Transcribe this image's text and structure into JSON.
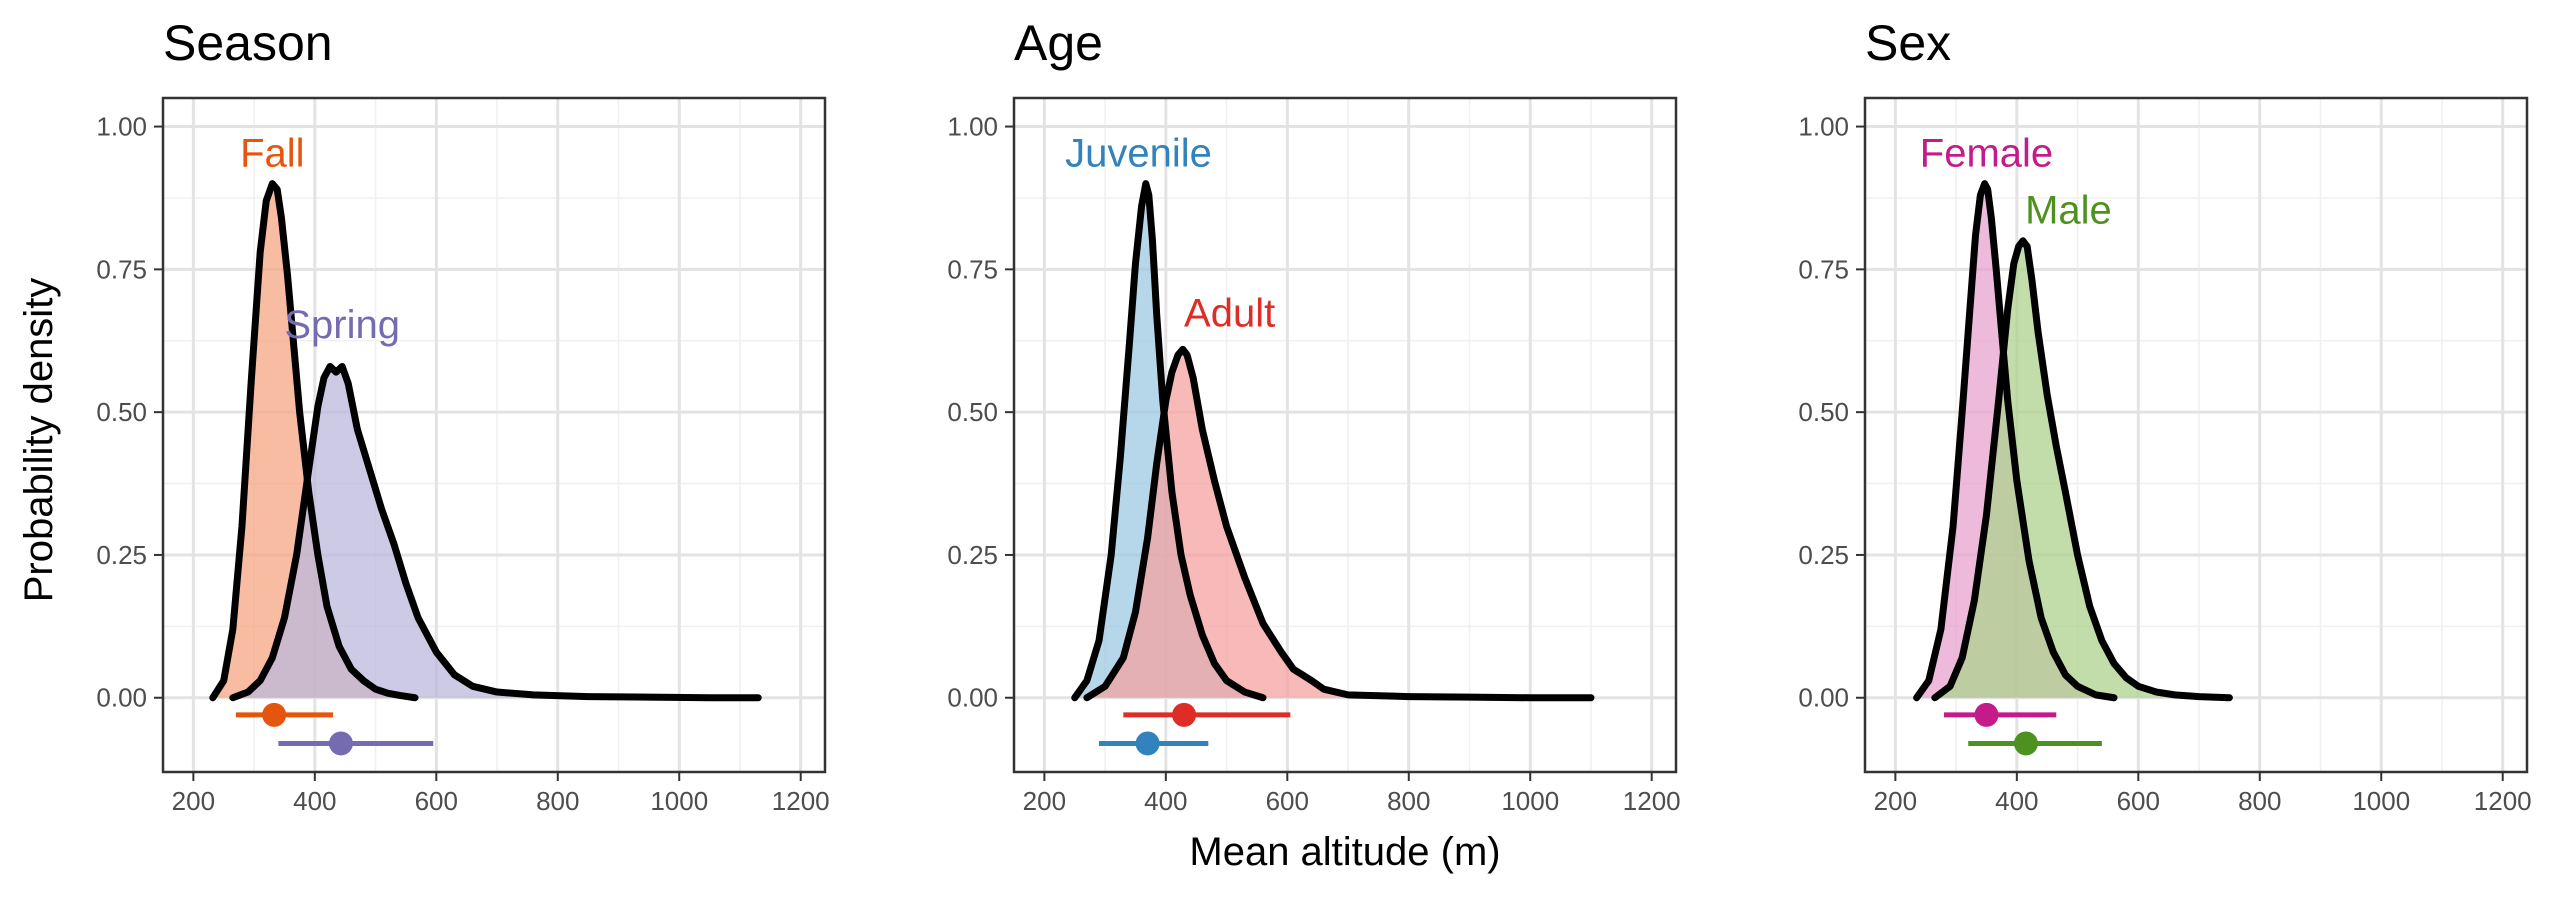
{
  "figure": {
    "ylabel": "Probability density",
    "xlabel": "Mean altitude (m)"
  },
  "chart_data": [
    {
      "type": "area",
      "title": "Season",
      "xlim": [
        150,
        1240
      ],
      "ylim": [
        -0.13,
        1.05
      ],
      "xticks": [
        200,
        400,
        600,
        800,
        1000,
        1200
      ],
      "yticks": [
        0,
        0.25,
        0.5,
        0.75,
        1
      ],
      "ytick_labels": [
        "0.00",
        "0.25",
        "0.50",
        "0.75",
        "1.00"
      ],
      "grid": true,
      "series": [
        {
          "name": "Fall",
          "color": "#e6550d",
          "fill": "#f4a582",
          "x": [
            232,
            250,
            265,
            280,
            295,
            310,
            320,
            330,
            338,
            345,
            355,
            365,
            375,
            390,
            405,
            420,
            440,
            460,
            480,
            500,
            520,
            540,
            565
          ],
          "y": [
            0,
            0.03,
            0.12,
            0.3,
            0.55,
            0.78,
            0.87,
            0.9,
            0.89,
            0.84,
            0.74,
            0.62,
            0.5,
            0.36,
            0.25,
            0.16,
            0.09,
            0.05,
            0.03,
            0.015,
            0.008,
            0.004,
            0
          ],
          "label_x": 330,
          "label_y": 0.93,
          "summary": {
            "mean": 333,
            "low": 270,
            "high": 430,
            "offset": -0.03
          }
        },
        {
          "name": "Spring",
          "color": "#756bb1",
          "fill": "#bcb8dc",
          "x": [
            265,
            290,
            310,
            330,
            350,
            370,
            390,
            405,
            415,
            425,
            435,
            445,
            455,
            470,
            490,
            510,
            530,
            550,
            570,
            600,
            630,
            660,
            700,
            760,
            850,
            950,
            1050,
            1130
          ],
          "y": [
            0,
            0.01,
            0.03,
            0.07,
            0.14,
            0.25,
            0.4,
            0.51,
            0.56,
            0.58,
            0.57,
            0.58,
            0.55,
            0.47,
            0.4,
            0.33,
            0.27,
            0.2,
            0.14,
            0.08,
            0.04,
            0.02,
            0.01,
            0.005,
            0.002,
            0.001,
            0,
            0
          ],
          "label_x": 445,
          "label_y": 0.63,
          "summary": {
            "mean": 443,
            "low": 340,
            "high": 595,
            "offset": -0.08
          }
        }
      ]
    },
    {
      "type": "area",
      "title": "Age",
      "xlim": [
        150,
        1240
      ],
      "ylim": [
        -0.13,
        1.05
      ],
      "xticks": [
        200,
        400,
        600,
        800,
        1000,
        1200
      ],
      "yticks": [
        0,
        0.25,
        0.5,
        0.75,
        1
      ],
      "ytick_labels": [
        "0.00",
        "0.25",
        "0.50",
        "0.75",
        "1.00"
      ],
      "grid": true,
      "series": [
        {
          "name": "Juvenile",
          "color": "#3182bd",
          "fill": "#9ecae1",
          "x": [
            250,
            270,
            290,
            310,
            325,
            340,
            350,
            360,
            367,
            372,
            378,
            385,
            395,
            410,
            425,
            440,
            460,
            480,
            500,
            530,
            560
          ],
          "y": [
            0,
            0.03,
            0.1,
            0.25,
            0.42,
            0.62,
            0.76,
            0.86,
            0.9,
            0.88,
            0.8,
            0.67,
            0.52,
            0.36,
            0.25,
            0.18,
            0.11,
            0.06,
            0.03,
            0.01,
            0
          ],
          "label_x": 355,
          "label_y": 0.93,
          "summary": {
            "mean": 370,
            "low": 290,
            "high": 470,
            "offset": -0.08
          }
        },
        {
          "name": "Adult",
          "color": "#de2d26",
          "fill": "#f4a3a0",
          "x": [
            270,
            300,
            330,
            350,
            370,
            385,
            400,
            410,
            420,
            428,
            435,
            445,
            460,
            480,
            500,
            530,
            560,
            590,
            610,
            625,
            640,
            660,
            700,
            800,
            900,
            1000,
            1100
          ],
          "y": [
            0,
            0.02,
            0.07,
            0.15,
            0.28,
            0.41,
            0.52,
            0.57,
            0.6,
            0.61,
            0.6,
            0.56,
            0.47,
            0.38,
            0.3,
            0.21,
            0.13,
            0.08,
            0.05,
            0.04,
            0.03,
            0.015,
            0.005,
            0.002,
            0.001,
            0,
            0
          ],
          "label_x": 505,
          "label_y": 0.65,
          "summary": {
            "mean": 430,
            "low": 330,
            "high": 605,
            "offset": -0.03
          }
        }
      ]
    },
    {
      "type": "area",
      "title": "Sex",
      "xlim": [
        150,
        1240
      ],
      "ylim": [
        -0.13,
        1.05
      ],
      "xticks": [
        200,
        400,
        600,
        800,
        1000,
        1200
      ],
      "yticks": [
        0,
        0.25,
        0.5,
        0.75,
        1
      ],
      "ytick_labels": [
        "0.00",
        "0.25",
        "0.50",
        "0.75",
        "1.00"
      ],
      "grid": true,
      "series": [
        {
          "name": "Female",
          "color": "#c51b8a",
          "fill": "#e7a3cf",
          "x": [
            235,
            255,
            275,
            295,
            310,
            322,
            332,
            340,
            347,
            352,
            358,
            366,
            375,
            385,
            400,
            420,
            440,
            460,
            480,
            500,
            530,
            560
          ],
          "y": [
            0,
            0.03,
            0.12,
            0.3,
            0.5,
            0.67,
            0.81,
            0.88,
            0.9,
            0.89,
            0.84,
            0.75,
            0.64,
            0.52,
            0.38,
            0.24,
            0.14,
            0.08,
            0.04,
            0.02,
            0.005,
            0
          ],
          "label_x": 350,
          "label_y": 0.93,
          "summary": {
            "mean": 350,
            "low": 280,
            "high": 465,
            "offset": -0.03
          }
        },
        {
          "name": "Male",
          "color": "#4d9221",
          "fill": "#aed18e",
          "x": [
            265,
            290,
            310,
            330,
            350,
            370,
            385,
            395,
            403,
            410,
            417,
            425,
            435,
            450,
            465,
            480,
            500,
            520,
            540,
            560,
            580,
            600,
            630,
            660,
            700,
            750
          ],
          "y": [
            0,
            0.02,
            0.07,
            0.17,
            0.32,
            0.52,
            0.68,
            0.76,
            0.79,
            0.8,
            0.79,
            0.73,
            0.64,
            0.53,
            0.44,
            0.36,
            0.25,
            0.16,
            0.1,
            0.06,
            0.035,
            0.02,
            0.01,
            0.005,
            0.002,
            0
          ],
          "label_x": 485,
          "label_y": 0.83,
          "summary": {
            "mean": 415,
            "low": 320,
            "high": 540,
            "offset": -0.08
          }
        }
      ]
    }
  ]
}
